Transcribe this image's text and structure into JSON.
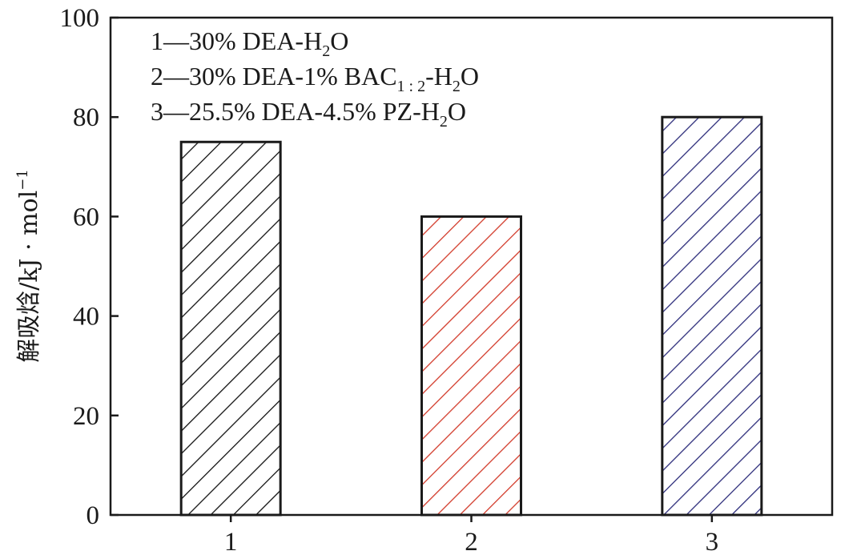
{
  "chart_data": {
    "type": "bar",
    "categories": [
      "1",
      "2",
      "3"
    ],
    "values": [
      75,
      60,
      80
    ],
    "xlabel": "",
    "ylabel": "解吸焓/kJ · mol",
    "ylabel_superscript": "−1",
    "ylim": [
      0,
      100
    ],
    "yticks": [
      0,
      20,
      40,
      60,
      80,
      100
    ],
    "bar_colors": [
      "#111111",
      "#d23a2a",
      "#2c2c7a"
    ],
    "bar_fill": "hatched",
    "grid": false,
    "legend_placement": "top-left",
    "legend": [
      {
        "prefix": "1—30% DEA-H",
        "sub": "2",
        "suffix": "O"
      },
      {
        "prefix": "2—30% DEA-1% BAC",
        "sub": "1 : 2",
        "suffix": "-H",
        "sub2": "2",
        "suffix2": "O"
      },
      {
        "prefix": "3—25.5% DEA-4.5% PZ-H",
        "sub": "2",
        "suffix": "O"
      }
    ]
  }
}
